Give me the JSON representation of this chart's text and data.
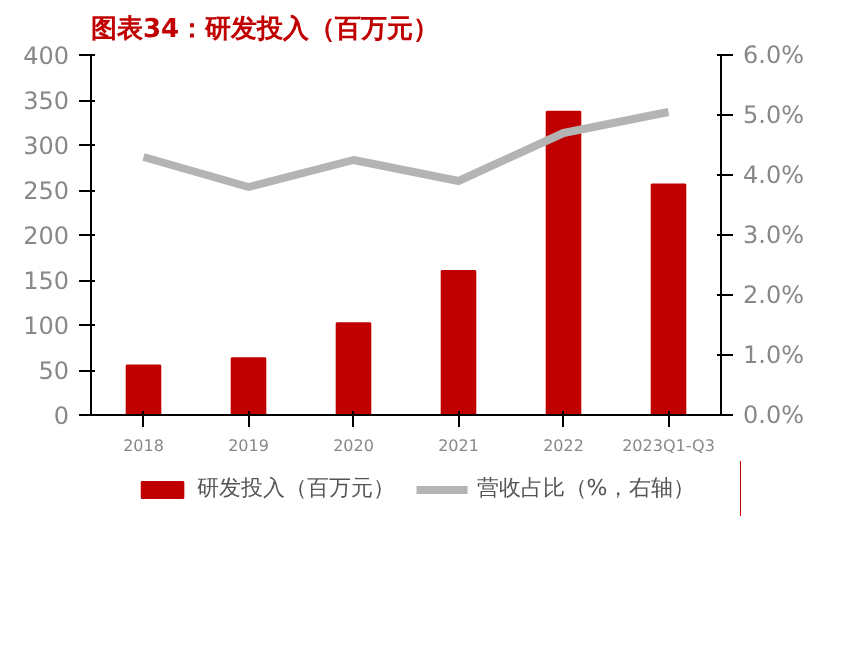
{
  "chart_data": {
    "type": "bar",
    "title": "图表34：研发投入（百万元）",
    "categories": [
      "2018",
      "2019",
      "2020",
      "2021",
      "2022",
      "2023Q1-Q3"
    ],
    "series": [
      {
        "name": "研发投入（百万元）",
        "color": "#c00000",
        "values": [
          55,
          63,
          102,
          160,
          337,
          256
        ]
      },
      {
        "name": "营收占比（%，右轴）",
        "type": "line",
        "axis": "y2",
        "color": "#b4b4b4",
        "values": [
          4.3,
          3.8,
          4.25,
          3.9,
          4.7,
          5.05
        ]
      }
    ],
    "ylim": [
      0,
      400
    ],
    "yticks": [
      0,
      50,
      100,
      150,
      200,
      250,
      300,
      350,
      400
    ],
    "y2lim": [
      0,
      6
    ],
    "y2ticks": [
      {
        "value": 0,
        "label": "0.0%"
      },
      {
        "value": 1,
        "label": "1.0%"
      },
      {
        "value": 2,
        "label": "2.0%"
      },
      {
        "value": 3,
        "label": "3.0%"
      },
      {
        "value": 4,
        "label": "4.0%"
      },
      {
        "value": 5,
        "label": "5.0%"
      },
      {
        "value": 6,
        "label": "6.0%"
      }
    ],
    "legend": "bottom",
    "grid": false,
    "line_style": "solid",
    "marker": "none"
  }
}
